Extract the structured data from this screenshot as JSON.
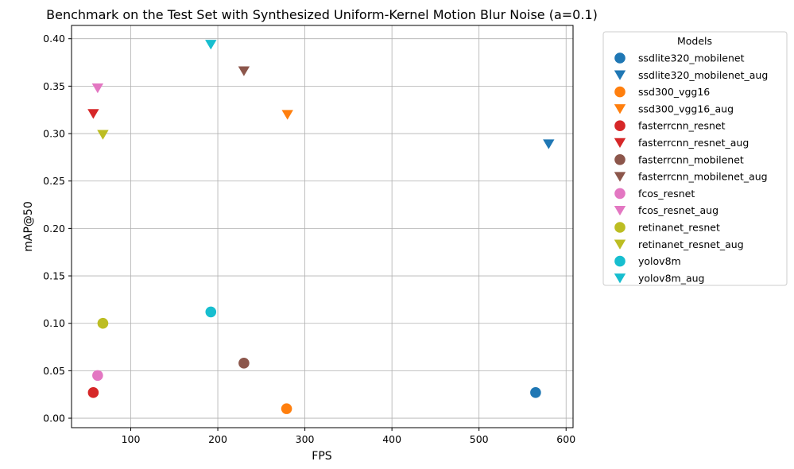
{
  "chart_data": {
    "type": "scatter",
    "title": "Benchmark on the Test Set with Synthesized Uniform-Kernel Motion Blur Noise  (a=0.1)",
    "xlabel": "FPS",
    "ylabel": "mAP@50",
    "xlim": [
      32,
      608
    ],
    "ylim": [
      -0.01,
      0.414
    ],
    "x_ticks": [
      100,
      200,
      300,
      400,
      500,
      600
    ],
    "x_tick_labels": [
      "100",
      "200",
      "300",
      "400",
      "500",
      "600"
    ],
    "y_ticks": [
      0.0,
      0.05,
      0.1,
      0.15,
      0.2,
      0.25,
      0.3,
      0.35,
      0.4
    ],
    "y_tick_labels": [
      "0.00",
      "0.05",
      "0.10",
      "0.15",
      "0.20",
      "0.25",
      "0.30",
      "0.35",
      "0.40"
    ],
    "grid": true,
    "legend": {
      "title": "Models",
      "placement": "outside-right"
    },
    "series": [
      {
        "name": "ssdlite320_mobilenet",
        "marker": "circle",
        "color": "#1f77b4",
        "x": [
          565
        ],
        "y": [
          0.027
        ]
      },
      {
        "name": "ssdlite320_mobilenet_aug",
        "marker": "triangle-down",
        "color": "#1f77b4",
        "x": [
          580
        ],
        "y": [
          0.289
        ]
      },
      {
        "name": "ssd300_vgg16",
        "marker": "circle",
        "color": "#ff7f0e",
        "x": [
          279
        ],
        "y": [
          0.01
        ]
      },
      {
        "name": "ssd300_vgg16_aug",
        "marker": "triangle-down",
        "color": "#ff7f0e",
        "x": [
          280
        ],
        "y": [
          0.32
        ]
      },
      {
        "name": "fasterrcnn_resnet",
        "marker": "circle",
        "color": "#d62728",
        "x": [
          57
        ],
        "y": [
          0.027
        ]
      },
      {
        "name": "fasterrcnn_resnet_aug",
        "marker": "triangle-down",
        "color": "#d62728",
        "x": [
          57
        ],
        "y": [
          0.321
        ]
      },
      {
        "name": "fasterrcnn_mobilenet",
        "marker": "circle",
        "color": "#8c564b",
        "x": [
          230
        ],
        "y": [
          0.058
        ]
      },
      {
        "name": "fasterrcnn_mobilenet_aug",
        "marker": "triangle-down",
        "color": "#8c564b",
        "x": [
          230
        ],
        "y": [
          0.366
        ]
      },
      {
        "name": "fcos_resnet",
        "marker": "circle",
        "color": "#e377c2",
        "x": [
          62
        ],
        "y": [
          0.045
        ]
      },
      {
        "name": "fcos_resnet_aug",
        "marker": "triangle-down",
        "color": "#e377c2",
        "x": [
          62
        ],
        "y": [
          0.348
        ]
      },
      {
        "name": "retinanet_resnet",
        "marker": "circle",
        "color": "#bcbd22",
        "x": [
          68
        ],
        "y": [
          0.1
        ]
      },
      {
        "name": "retinanet_resnet_aug",
        "marker": "triangle-down",
        "color": "#bcbd22",
        "x": [
          68
        ],
        "y": [
          0.299
        ]
      },
      {
        "name": "yolov8m",
        "marker": "circle",
        "color": "#17becf",
        "x": [
          192
        ],
        "y": [
          0.112
        ]
      },
      {
        "name": "yolov8m_aug",
        "marker": "triangle-down",
        "color": "#17becf",
        "x": [
          192
        ],
        "y": [
          0.394
        ]
      }
    ]
  }
}
